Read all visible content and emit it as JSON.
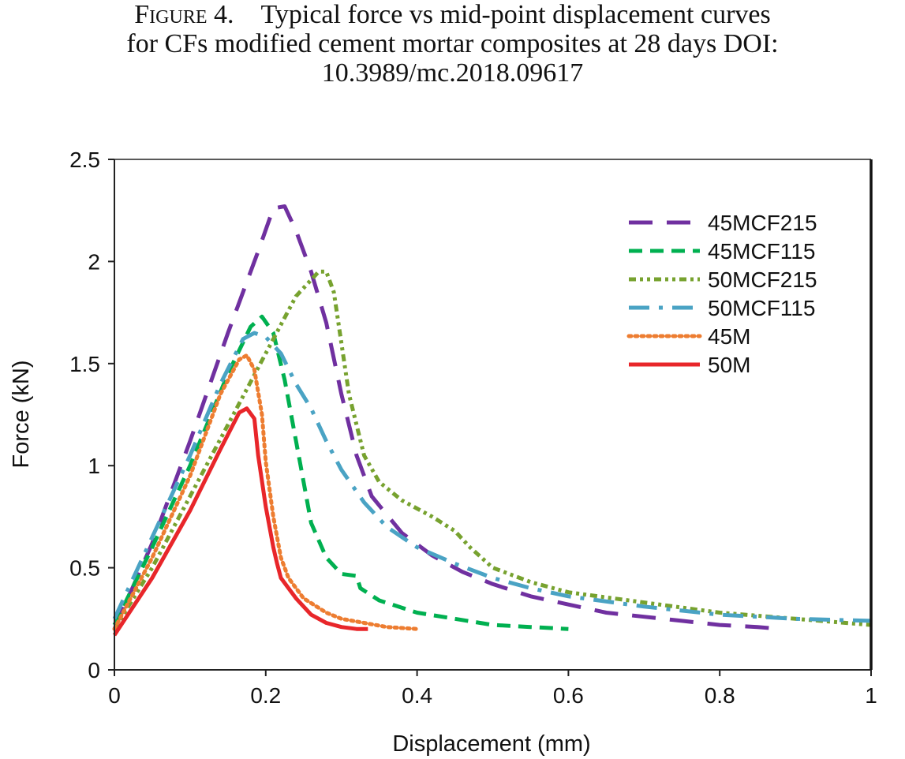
{
  "caption": {
    "figure_label": "Figure 4.",
    "line1": "Typical force vs mid-point displacement curves",
    "line2": "for CFs modified cement mortar composites at 28 days DOI:",
    "line3": "10.3989/mc.2018.09617"
  },
  "chart_data": {
    "type": "line",
    "title": "",
    "xlabel": "Displacement (mm)",
    "ylabel": "Force (kN)",
    "xlim": [
      0,
      1
    ],
    "ylim": [
      0,
      2.5
    ],
    "xticks": [
      0,
      0.2,
      0.4,
      0.6,
      0.8,
      1
    ],
    "xtick_labels": [
      "0",
      "0.2",
      "0.4",
      "0.6",
      "0.8",
      "1"
    ],
    "yticks": [
      0,
      0.5,
      1,
      1.5,
      2,
      2.5
    ],
    "ytick_labels": [
      "0",
      "0.5",
      "1",
      "1.5",
      "2",
      "2.5"
    ],
    "grid": false,
    "legend_position": "top-right",
    "series": [
      {
        "name": "45MCF215",
        "color": "#7030a0",
        "style": "long-dash",
        "x": [
          0,
          0.05,
          0.1,
          0.15,
          0.19,
          0.21,
          0.225,
          0.24,
          0.26,
          0.28,
          0.3,
          0.32,
          0.34,
          0.38,
          0.42,
          0.46,
          0.5,
          0.55,
          0.6,
          0.65,
          0.7,
          0.75,
          0.8,
          0.85,
          0.88
        ],
        "y": [
          0.2,
          0.62,
          1.12,
          1.65,
          2.05,
          2.26,
          2.27,
          2.15,
          1.95,
          1.7,
          1.35,
          1.05,
          0.85,
          0.67,
          0.56,
          0.48,
          0.42,
          0.36,
          0.32,
          0.28,
          0.26,
          0.24,
          0.22,
          0.21,
          0.2
        ]
      },
      {
        "name": "45MCF115",
        "color": "#00b050",
        "style": "dash",
        "x": [
          0,
          0.05,
          0.1,
          0.15,
          0.18,
          0.195,
          0.21,
          0.225,
          0.24,
          0.25,
          0.26,
          0.28,
          0.3,
          0.32,
          0.325,
          0.35,
          0.4,
          0.45,
          0.5,
          0.55,
          0.6
        ],
        "y": [
          0.22,
          0.6,
          1.0,
          1.45,
          1.68,
          1.73,
          1.65,
          1.42,
          1.12,
          0.92,
          0.72,
          0.55,
          0.47,
          0.46,
          0.4,
          0.34,
          0.28,
          0.25,
          0.22,
          0.21,
          0.2
        ]
      },
      {
        "name": "50MCF215",
        "color": "#77a22f",
        "style": "dash-dot-dot",
        "x": [
          0,
          0.05,
          0.1,
          0.15,
          0.2,
          0.24,
          0.27,
          0.28,
          0.29,
          0.3,
          0.31,
          0.33,
          0.35,
          0.38,
          0.42,
          0.45,
          0.47,
          0.5,
          0.55,
          0.6,
          0.7,
          0.8,
          0.9,
          1.0
        ],
        "y": [
          0.2,
          0.5,
          0.85,
          1.2,
          1.55,
          1.83,
          1.95,
          1.95,
          1.85,
          1.6,
          1.35,
          1.05,
          0.92,
          0.83,
          0.75,
          0.68,
          0.6,
          0.5,
          0.43,
          0.38,
          0.33,
          0.28,
          0.25,
          0.22
        ]
      },
      {
        "name": "50MCF115",
        "color": "#4aa3c4",
        "style": "dash-dot",
        "x": [
          0,
          0.05,
          0.1,
          0.14,
          0.17,
          0.185,
          0.2,
          0.22,
          0.24,
          0.26,
          0.28,
          0.3,
          0.33,
          0.36,
          0.4,
          0.45,
          0.5,
          0.55,
          0.6,
          0.7,
          0.8,
          0.9,
          1.0
        ],
        "y": [
          0.25,
          0.65,
          1.05,
          1.4,
          1.62,
          1.65,
          1.63,
          1.55,
          1.4,
          1.28,
          1.12,
          0.98,
          0.82,
          0.7,
          0.6,
          0.52,
          0.45,
          0.4,
          0.36,
          0.31,
          0.27,
          0.25,
          0.24
        ]
      },
      {
        "name": "45M",
        "color": "#ed7d31",
        "style": "dot",
        "x": [
          0,
          0.05,
          0.1,
          0.14,
          0.165,
          0.175,
          0.185,
          0.195,
          0.2,
          0.21,
          0.22,
          0.23,
          0.25,
          0.28,
          0.3,
          0.33,
          0.36,
          0.4
        ],
        "y": [
          0.2,
          0.55,
          0.95,
          1.35,
          1.52,
          1.54,
          1.47,
          1.25,
          1.02,
          0.75,
          0.55,
          0.45,
          0.35,
          0.28,
          0.25,
          0.23,
          0.21,
          0.2
        ]
      },
      {
        "name": "50M",
        "color": "#e8262a",
        "style": "solid",
        "x": [
          0,
          0.05,
          0.1,
          0.14,
          0.165,
          0.175,
          0.185,
          0.19,
          0.2,
          0.21,
          0.215,
          0.22,
          0.24,
          0.26,
          0.28,
          0.3,
          0.32,
          0.335
        ],
        "y": [
          0.17,
          0.45,
          0.78,
          1.08,
          1.26,
          1.28,
          1.23,
          1.05,
          0.8,
          0.6,
          0.52,
          0.45,
          0.35,
          0.27,
          0.23,
          0.21,
          0.2,
          0.2
        ]
      }
    ]
  }
}
